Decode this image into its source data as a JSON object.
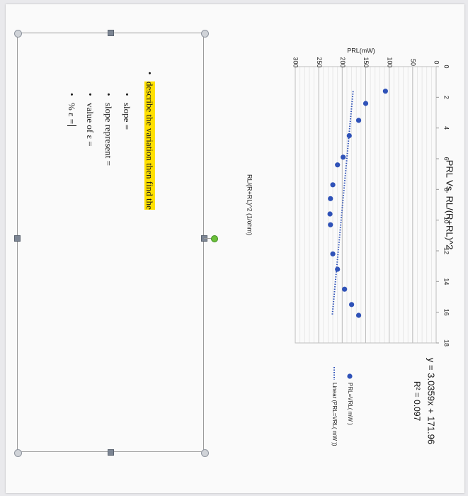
{
  "chart_data": {
    "type": "scatter",
    "title": "PRL Vs. RL/(R+RL)^2",
    "xlabel": "RL/(R+RL)^2 (1/ohm)",
    "ylabel": "PRL(mW)",
    "xlim": [
      0,
      18
    ],
    "ylim": [
      0,
      300
    ],
    "xticks": [
      "0",
      "2",
      "4",
      "6",
      "8",
      "10",
      "12",
      "14",
      "16",
      "18"
    ],
    "yticks": [
      "0",
      "50",
      "100",
      "150",
      "200",
      "250",
      "300"
    ],
    "grid": true,
    "legend_position": "right",
    "series": [
      {
        "name": "PRL=VRL( mW )",
        "marker": "circle",
        "color": "#2f52b8",
        "x": [
          1.6,
          2.4,
          3.5,
          4.5,
          5.9,
          6.4,
          7.7,
          8.6,
          9.6,
          10.3,
          12.2,
          13.2,
          14.5,
          15.5,
          16.2
        ],
        "y": [
          108,
          150,
          165,
          185,
          198,
          210,
          220,
          225,
          226,
          225,
          220,
          210,
          195,
          180,
          165
        ]
      }
    ],
    "trendline": {
      "name": "Linear (PRL=VRL( mW ))",
      "style": "dotted",
      "color": "#2f52b8",
      "slope": 3.0359,
      "intercept": 171.96,
      "x_range": [
        1.6,
        16.2
      ],
      "equation": "y = 3.0359x + 171.96",
      "r2": "R² = 0.097"
    }
  },
  "textbox": {
    "heading": "describe the variation then find the",
    "items": [
      "slope =",
      "slope represent =",
      "value of ε =",
      "% ε ="
    ]
  },
  "colors": {
    "marker": "#2f52b8",
    "highlight": "#ffe000",
    "rotate_handle": "#6bbf3a"
  }
}
